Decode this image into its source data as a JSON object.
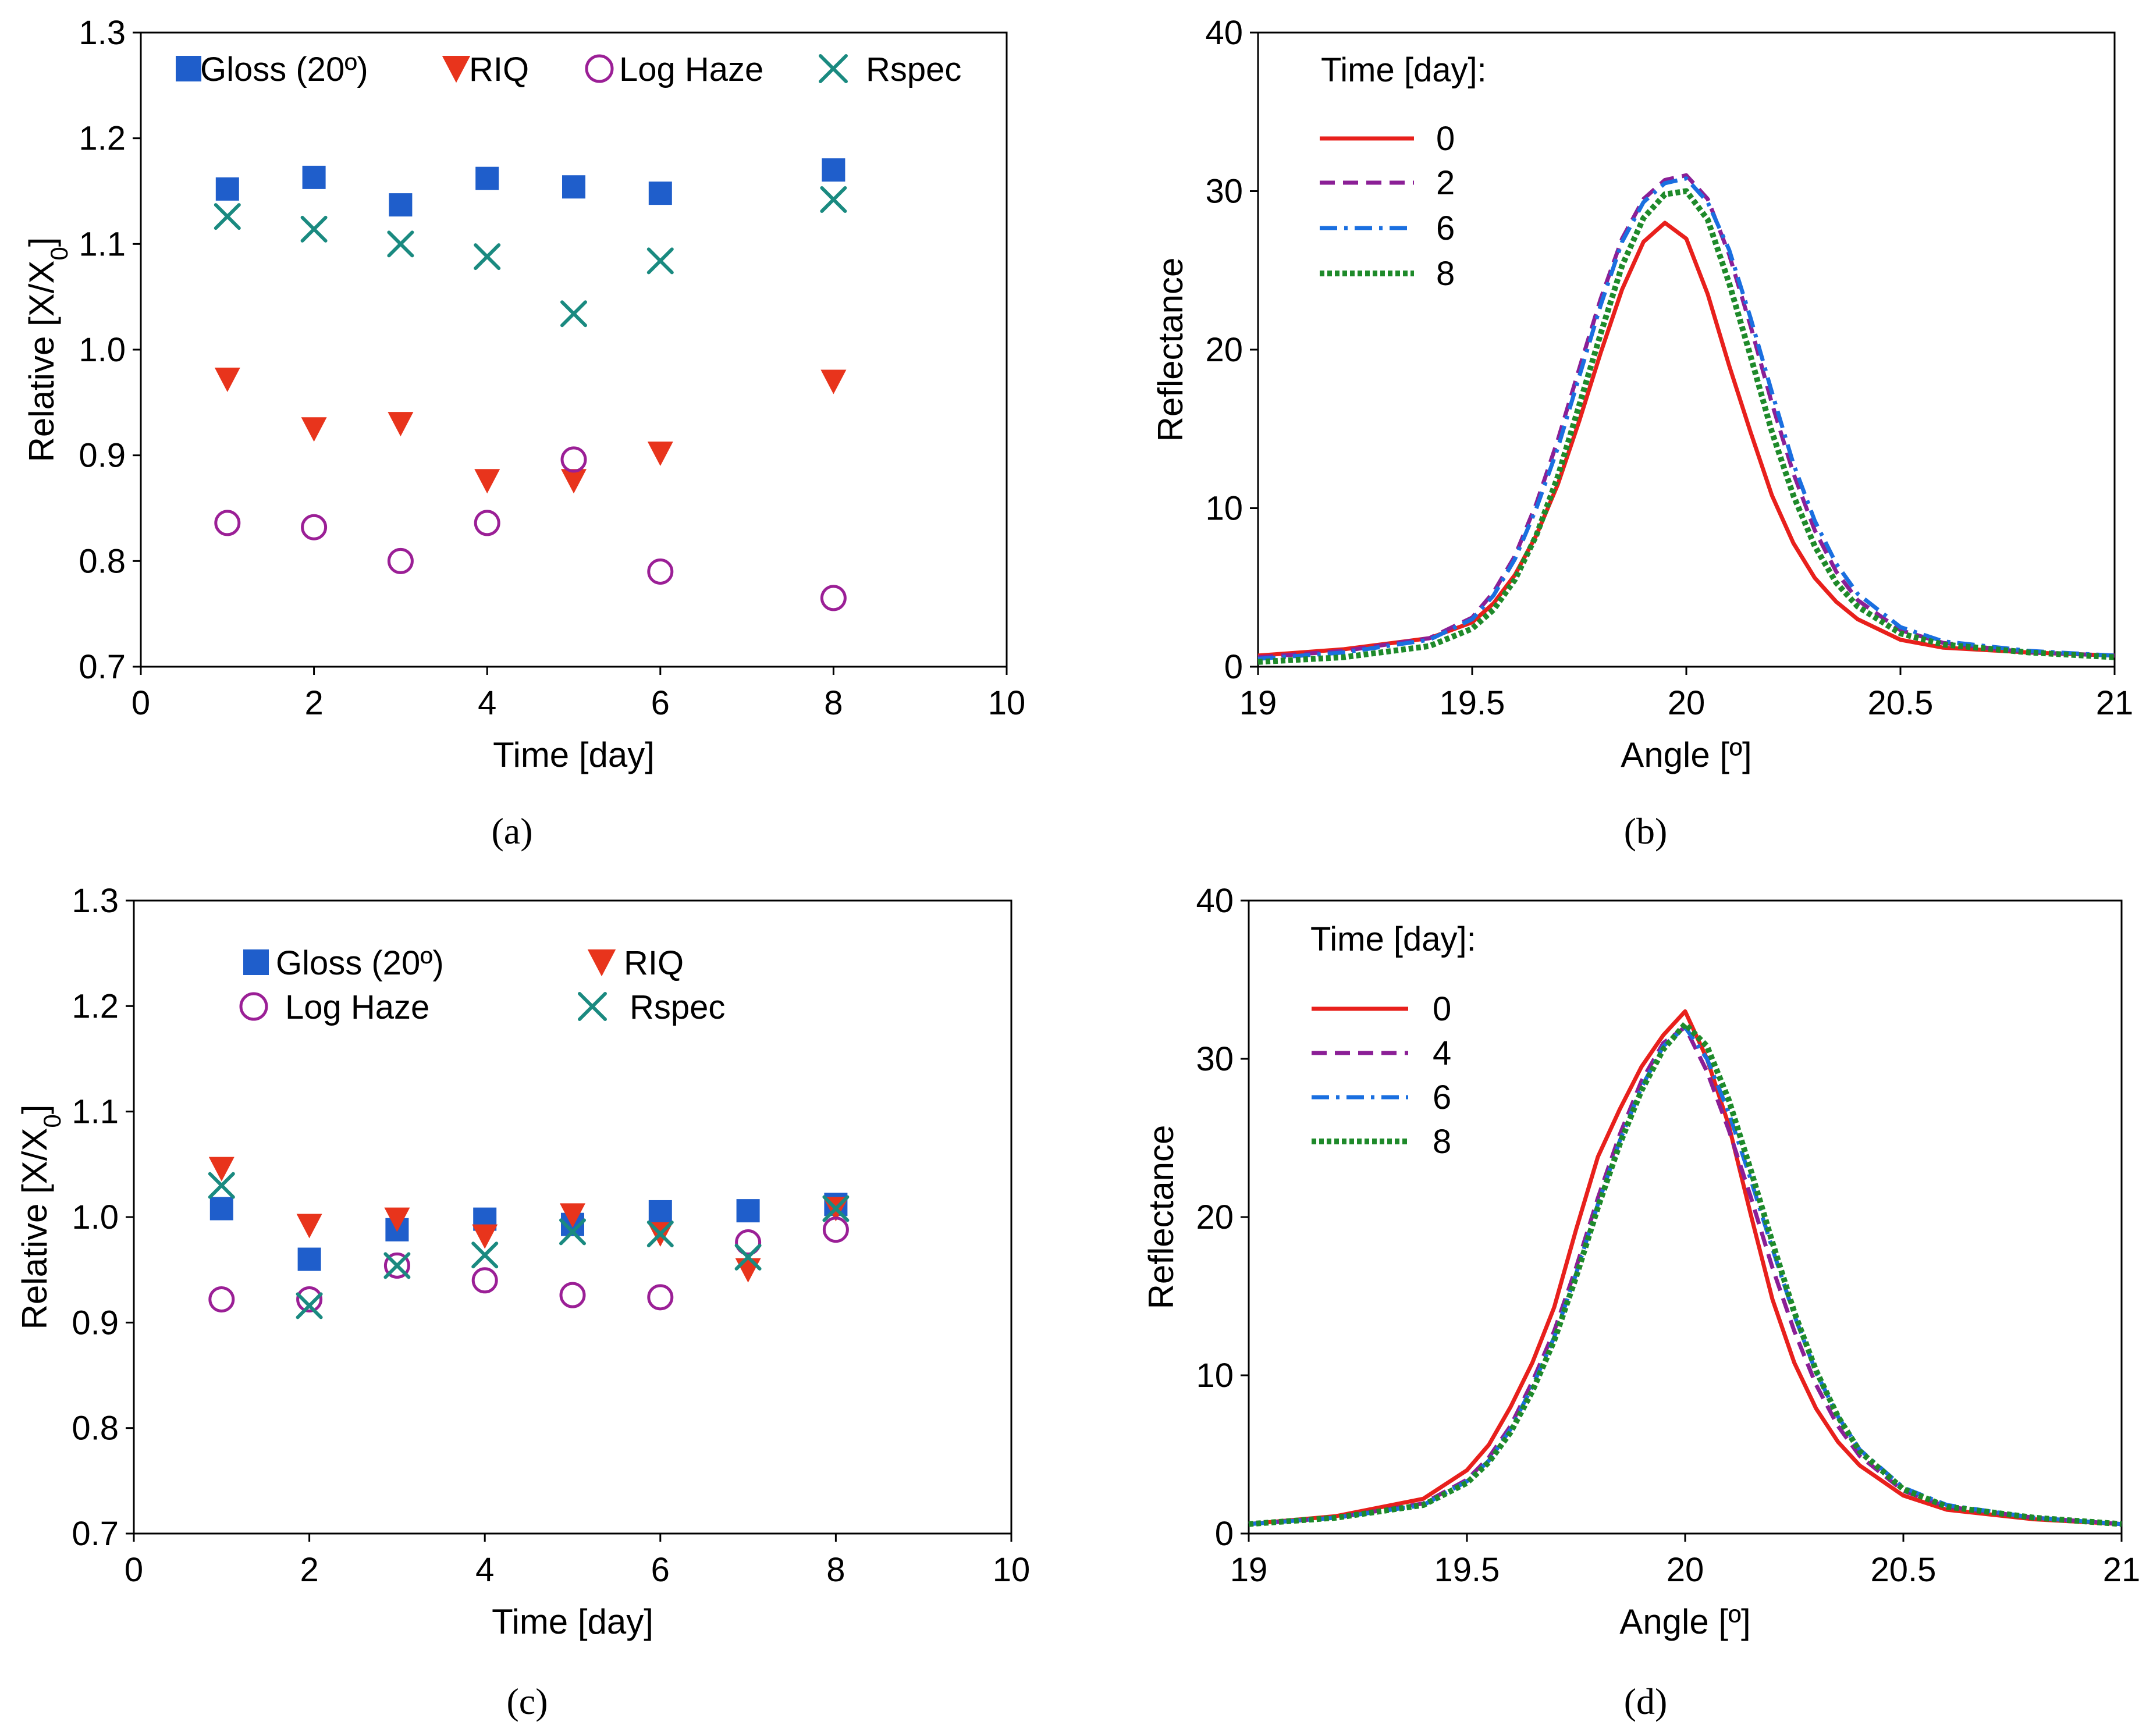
{
  "chart_data": [
    {
      "panel": "a",
      "panel_label": "(a)",
      "type": "scatter",
      "xlabel": "Time [day]",
      "ylabel": "Relative [X/X0]",
      "xlim": [
        0,
        10
      ],
      "ylim": [
        0.7,
        1.3
      ],
      "xticks": [
        "0",
        "2",
        "4",
        "6",
        "8",
        "10"
      ],
      "yticks": [
        "0.7",
        "0.8",
        "0.9",
        "1.0",
        "1.1",
        "1.2",
        "1.3"
      ],
      "legend_position": "top (single row)",
      "series": [
        {
          "name": "Gloss (20º)",
          "marker": "square",
          "color": "#1f5ecb",
          "x": [
            1,
            2,
            3,
            4,
            5,
            6,
            8
          ],
          "y": [
            1.152,
            1.163,
            1.137,
            1.162,
            1.154,
            1.148,
            1.17
          ]
        },
        {
          "name": "RIQ",
          "marker": "triangle-down",
          "color": "#e8341c",
          "x": [
            1,
            2,
            3,
            4,
            5,
            6,
            8
          ],
          "y": [
            0.972,
            0.925,
            0.93,
            0.876,
            0.876,
            0.902,
            0.97
          ]
        },
        {
          "name": "Log Haze",
          "marker": "circle-open",
          "color": "#9b1f96",
          "x": [
            1,
            2,
            3,
            4,
            5,
            6,
            8
          ],
          "y": [
            0.836,
            0.832,
            0.8,
            0.836,
            0.896,
            0.79,
            0.765
          ]
        },
        {
          "name": "Rspec",
          "marker": "x",
          "color": "#1a8a80",
          "x": [
            1,
            2,
            3,
            4,
            5,
            6,
            8
          ],
          "y": [
            1.126,
            1.114,
            1.1,
            1.088,
            1.034,
            1.084,
            1.142
          ]
        }
      ]
    },
    {
      "panel": "b",
      "panel_label": "(b)",
      "type": "line",
      "xlabel": "Angle [º]",
      "ylabel": "Reflectance",
      "xlim": [
        19,
        21
      ],
      "ylim": [
        0,
        40
      ],
      "xticks": [
        "19",
        "19.5",
        "20",
        "20.5",
        "21"
      ],
      "yticks": [
        "0",
        "10",
        "20",
        "30",
        "40"
      ],
      "legend_title": "Time [day]:",
      "legend_position": "top-left",
      "series": [
        {
          "name": "0",
          "style": "solid",
          "color": "#e8201c",
          "x": [
            19.0,
            19.2,
            19.4,
            19.5,
            19.55,
            19.6,
            19.65,
            19.7,
            19.75,
            19.8,
            19.85,
            19.9,
            19.95,
            20.0,
            20.05,
            20.1,
            20.15,
            20.2,
            20.25,
            20.3,
            20.35,
            20.4,
            20.5,
            20.6,
            20.8,
            21.0
          ],
          "y": [
            0.7,
            1.1,
            1.8,
            2.8,
            4.0,
            5.8,
            8.3,
            11.5,
            15.5,
            19.8,
            23.8,
            26.8,
            28.0,
            27.0,
            23.5,
            19.0,
            14.8,
            10.8,
            7.8,
            5.6,
            4.1,
            3.0,
            1.7,
            1.2,
            0.9,
            0.7
          ]
        },
        {
          "name": "2",
          "style": "dashed",
          "color": "#8b1f96",
          "x": [
            19.0,
            19.2,
            19.4,
            19.5,
            19.55,
            19.6,
            19.65,
            19.7,
            19.75,
            19.8,
            19.85,
            19.9,
            19.95,
            20.0,
            20.05,
            20.1,
            20.15,
            20.2,
            20.25,
            20.3,
            20.35,
            20.4,
            20.5,
            20.6,
            20.8,
            21.0
          ],
          "y": [
            0.6,
            1.0,
            1.8,
            3.1,
            4.7,
            7.0,
            10.3,
            14.3,
            18.8,
            23.2,
            27.0,
            29.5,
            30.7,
            31.0,
            29.5,
            26.0,
            21.5,
            16.6,
            12.2,
            8.6,
            6.0,
            4.2,
            2.3,
            1.5,
            0.9,
            0.7
          ]
        },
        {
          "name": "6",
          "style": "dash-dot",
          "color": "#1a6fe0",
          "x": [
            19.0,
            19.2,
            19.4,
            19.5,
            19.55,
            19.6,
            19.65,
            19.7,
            19.75,
            19.8,
            19.85,
            19.9,
            19.95,
            20.0,
            20.05,
            20.1,
            20.15,
            20.2,
            20.25,
            20.3,
            20.35,
            20.4,
            20.5,
            20.6,
            20.8,
            21.0
          ],
          "y": [
            0.5,
            0.9,
            1.7,
            3.0,
            4.5,
            6.8,
            10.0,
            13.8,
            18.3,
            22.8,
            26.8,
            29.3,
            30.5,
            30.8,
            29.3,
            26.3,
            22.0,
            17.3,
            12.8,
            9.2,
            6.5,
            4.6,
            2.5,
            1.6,
            1.0,
            0.7
          ]
        },
        {
          "name": "8",
          "style": "dotted",
          "color": "#1e8a2a",
          "x": [
            19.0,
            19.2,
            19.4,
            19.5,
            19.55,
            19.6,
            19.65,
            19.7,
            19.75,
            19.8,
            19.85,
            19.9,
            19.95,
            20.0,
            20.05,
            20.1,
            20.15,
            20.2,
            20.25,
            20.3,
            20.35,
            20.4,
            20.5,
            20.6,
            20.8,
            21.0
          ],
          "y": [
            0.3,
            0.6,
            1.3,
            2.4,
            3.6,
            5.5,
            8.3,
            12.0,
            16.5,
            21.0,
            25.3,
            28.3,
            29.8,
            30.0,
            28.2,
            24.2,
            19.6,
            14.8,
            10.8,
            7.6,
            5.3,
            3.8,
            2.1,
            1.4,
            0.9,
            0.6
          ]
        }
      ]
    },
    {
      "panel": "c",
      "panel_label": "(c)",
      "type": "scatter",
      "xlabel": "Time [day]",
      "ylabel": "Relative [X/X0]",
      "xlim": [
        0,
        10
      ],
      "ylim": [
        0.7,
        1.3
      ],
      "xticks": [
        "0",
        "2",
        "4",
        "6",
        "8",
        "10"
      ],
      "yticks": [
        "0.7",
        "0.8",
        "0.9",
        "1.0",
        "1.1",
        "1.2",
        "1.3"
      ],
      "legend_position": "top (two rows)",
      "series": [
        {
          "name": "Gloss (20º)",
          "marker": "square",
          "color": "#1f5ecb",
          "x": [
            1,
            2,
            3,
            4,
            5,
            6,
            7,
            8
          ],
          "y": [
            1.008,
            0.96,
            0.988,
            0.998,
            0.993,
            1.005,
            1.006,
            1.012
          ]
        },
        {
          "name": "RIQ",
          "marker": "triangle-down",
          "color": "#e8341c",
          "x": [
            1,
            2,
            3,
            4,
            5,
            6,
            7,
            8
          ],
          "y": [
            1.046,
            0.992,
            0.998,
            0.982,
            1.002,
            0.984,
            0.95,
            1.008
          ]
        },
        {
          "name": "Log Haze",
          "marker": "circle-open",
          "color": "#9b1f96",
          "x": [
            1,
            2,
            3,
            4,
            5,
            6,
            7,
            8
          ],
          "y": [
            0.922,
            0.922,
            0.954,
            0.94,
            0.926,
            0.924,
            0.976,
            0.988
          ]
        },
        {
          "name": "Rspec",
          "marker": "x",
          "color": "#1a8a80",
          "x": [
            1,
            2,
            3,
            4,
            5,
            6,
            7,
            8
          ],
          "y": [
            1.03,
            0.916,
            0.954,
            0.964,
            0.986,
            0.984,
            0.962,
            1.008
          ]
        }
      ]
    },
    {
      "panel": "d",
      "panel_label": "(d)",
      "type": "line",
      "xlabel": "Angle [º]",
      "ylabel": "Reflectance",
      "xlim": [
        19,
        21
      ],
      "ylim": [
        0,
        40
      ],
      "xticks": [
        "19",
        "19.5",
        "20",
        "20.5",
        "21"
      ],
      "yticks": [
        "0",
        "10",
        "20",
        "30",
        "40"
      ],
      "legend_title": "Time [day]:",
      "legend_position": "top-left",
      "series": [
        {
          "name": "0",
          "style": "solid",
          "color": "#e8201c",
          "x": [
            19.0,
            19.2,
            19.4,
            19.5,
            19.55,
            19.6,
            19.65,
            19.7,
            19.75,
            19.8,
            19.85,
            19.9,
            19.95,
            20.0,
            20.05,
            20.1,
            20.15,
            20.2,
            20.25,
            20.3,
            20.35,
            20.4,
            20.5,
            20.6,
            20.8,
            21.0
          ],
          "y": [
            0.6,
            1.1,
            2.2,
            4.0,
            5.6,
            8.0,
            10.8,
            14.3,
            19.2,
            23.8,
            26.8,
            29.5,
            31.5,
            33.0,
            30.0,
            25.8,
            20.2,
            14.8,
            10.8,
            7.9,
            5.8,
            4.3,
            2.4,
            1.5,
            0.9,
            0.6
          ]
        },
        {
          "name": "4",
          "style": "dashed",
          "color": "#8b1f96",
          "x": [
            19.0,
            19.2,
            19.4,
            19.5,
            19.55,
            19.6,
            19.65,
            19.7,
            19.75,
            19.8,
            19.85,
            19.9,
            19.95,
            20.0,
            20.05,
            20.1,
            20.15,
            20.2,
            20.25,
            20.3,
            20.35,
            20.4,
            20.5,
            20.6,
            20.8,
            21.0
          ],
          "y": [
            0.6,
            1.0,
            1.9,
            3.4,
            4.8,
            6.8,
            9.6,
            12.8,
            16.8,
            21.2,
            25.2,
            28.6,
            31.0,
            32.0,
            29.2,
            25.5,
            21.3,
            16.8,
            12.8,
            9.4,
            6.8,
            4.9,
            2.7,
            1.7,
            1.0,
            0.6
          ]
        },
        {
          "name": "6",
          "style": "dash-dot",
          "color": "#1a6fe0",
          "x": [
            19.0,
            19.2,
            19.4,
            19.5,
            19.55,
            19.6,
            19.65,
            19.7,
            19.75,
            19.8,
            19.85,
            19.9,
            19.95,
            20.0,
            20.05,
            20.1,
            20.15,
            20.2,
            20.25,
            20.3,
            20.35,
            20.4,
            20.5,
            20.6,
            20.8,
            21.0
          ],
          "y": [
            0.6,
            1.0,
            1.8,
            3.3,
            4.6,
            6.6,
            9.3,
            12.4,
            16.4,
            20.8,
            24.8,
            28.2,
            30.8,
            32.0,
            30.0,
            26.6,
            22.4,
            18.0,
            13.8,
            10.2,
            7.4,
            5.3,
            2.9,
            1.8,
            1.0,
            0.6
          ]
        },
        {
          "name": "8",
          "style": "dotted",
          "color": "#1e8a2a",
          "x": [
            19.0,
            19.2,
            19.4,
            19.5,
            19.55,
            19.6,
            19.65,
            19.7,
            19.75,
            19.8,
            19.85,
            19.9,
            19.95,
            20.0,
            20.05,
            20.1,
            20.15,
            20.2,
            20.25,
            20.3,
            20.35,
            20.4,
            20.5,
            20.6,
            20.8,
            21.0
          ],
          "y": [
            0.6,
            1.0,
            1.8,
            3.2,
            4.5,
            6.4,
            9.0,
            12.2,
            16.2,
            20.6,
            24.6,
            28.0,
            30.6,
            32.2,
            30.8,
            27.4,
            23.0,
            18.4,
            14.0,
            10.3,
            7.4,
            5.2,
            2.8,
            1.7,
            1.0,
            0.6
          ]
        }
      ]
    }
  ]
}
